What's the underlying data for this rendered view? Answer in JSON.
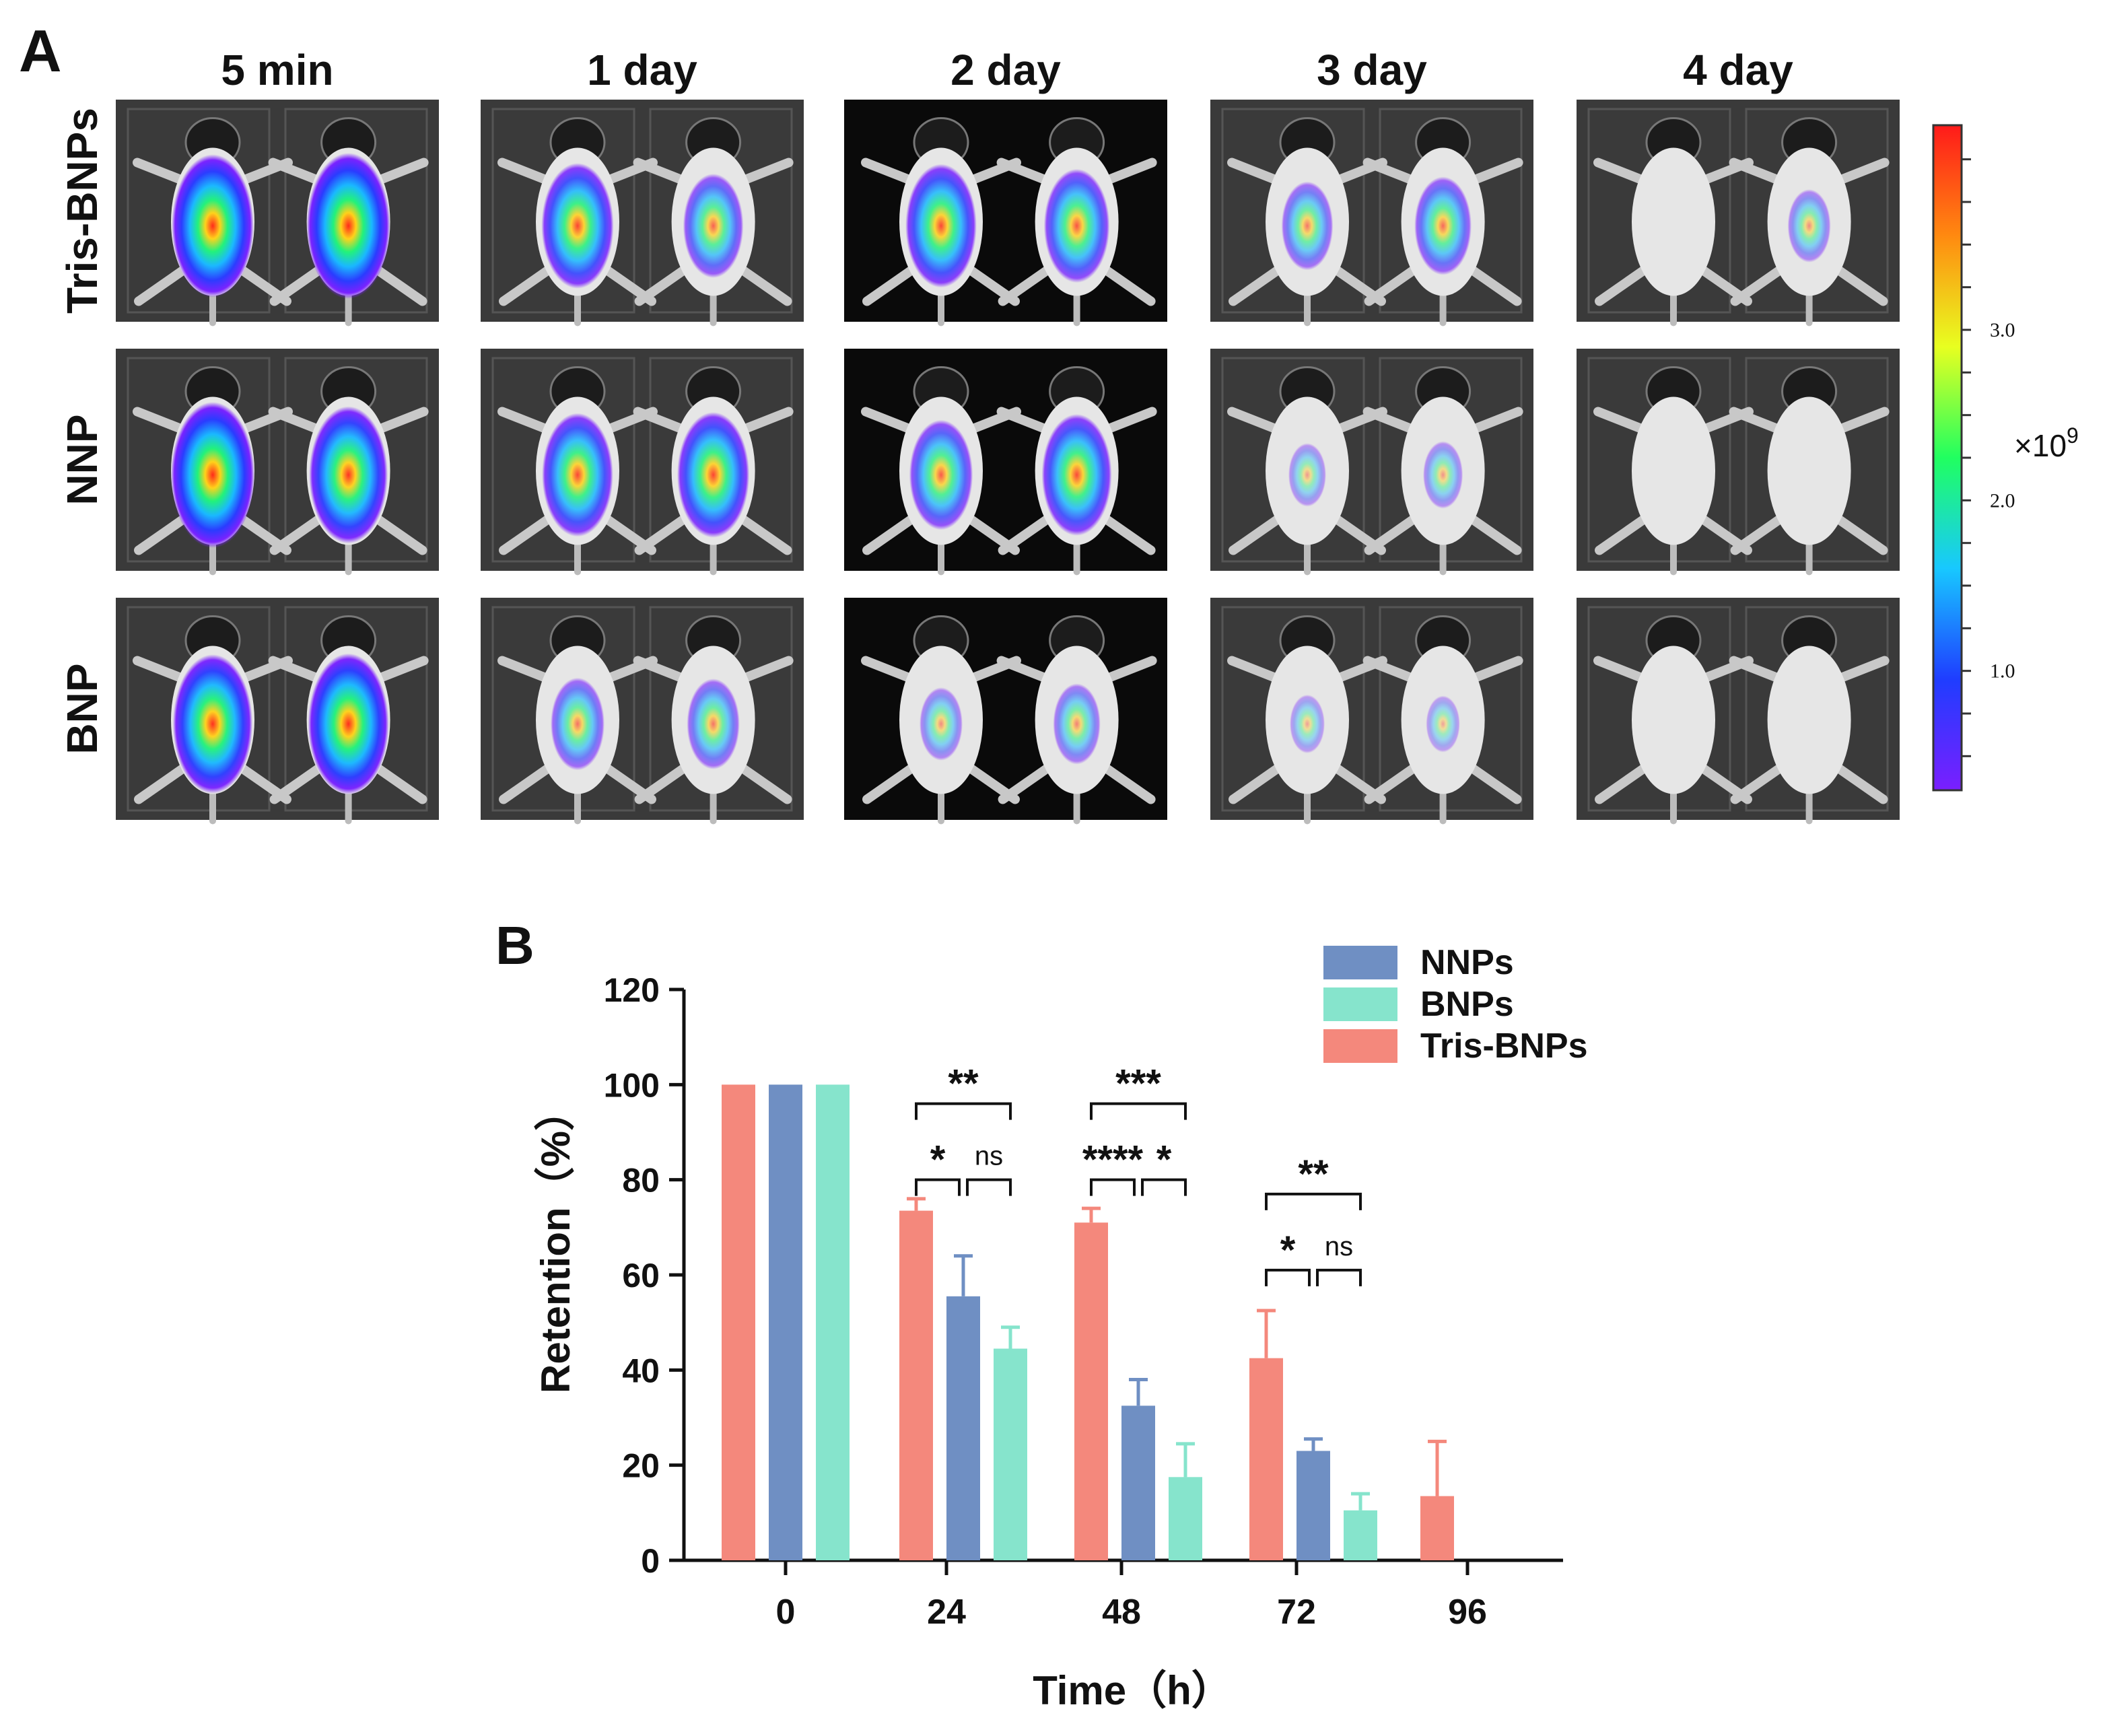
{
  "panel_a": {
    "label": "A",
    "columns": [
      "5 min",
      "1 day",
      "2 day",
      "3 day",
      "4 day"
    ],
    "rows": [
      "Tris-BNPs",
      "NNP",
      "BNP"
    ],
    "signal": [
      [
        [
          0.92,
          0.95
        ],
        [
          0.74,
          0.52
        ],
        [
          0.72,
          0.62
        ],
        [
          0.36,
          0.46
        ],
        [
          0.0,
          0.2
        ]
      ],
      [
        [
          0.95,
          0.86
        ],
        [
          0.72,
          0.74
        ],
        [
          0.58,
          0.7
        ],
        [
          0.1,
          0.14
        ],
        [
          0.0,
          0.0
        ]
      ],
      [
        [
          0.88,
          0.9
        ],
        [
          0.4,
          0.38
        ],
        [
          0.2,
          0.28
        ],
        [
          0.05,
          0.03
        ],
        [
          0.0,
          0.0
        ]
      ]
    ],
    "dark_background_columns": [
      2
    ],
    "colorbar": {
      "ticks": [
        "1.0",
        "2.0",
        "3.0"
      ],
      "tick_values": [
        1.0,
        2.0,
        3.0
      ],
      "range": [
        0.3,
        4.2
      ],
      "unit": "×10",
      "unit_exponent": "9",
      "colors": [
        "#7a1fff",
        "#1f3dff",
        "#18c8ff",
        "#20ff60",
        "#e8ff20",
        "#ff8a10",
        "#ff1a1a"
      ]
    }
  },
  "panel_b": {
    "label": "B",
    "annotations": [
      {
        "group": 1,
        "from": 0,
        "to": 2,
        "text": "**",
        "y": 96,
        "level": "top"
      },
      {
        "group": 1,
        "from": 0,
        "to": 1,
        "text": "*",
        "y": 80,
        "level": "low"
      },
      {
        "group": 1,
        "from": 1,
        "to": 2,
        "text": "ns",
        "y": 80,
        "level": "low"
      },
      {
        "group": 2,
        "from": 0,
        "to": 2,
        "text": "***",
        "y": 96,
        "level": "top"
      },
      {
        "group": 2,
        "from": 0,
        "to": 1,
        "text": "****",
        "y": 80,
        "level": "low"
      },
      {
        "group": 2,
        "from": 1,
        "to": 2,
        "text": "*",
        "y": 80,
        "level": "low"
      },
      {
        "group": 3,
        "from": 0,
        "to": 2,
        "text": "**",
        "y": 77,
        "level": "top"
      },
      {
        "group": 3,
        "from": 0,
        "to": 1,
        "text": "*",
        "y": 61,
        "level": "low"
      },
      {
        "group": 3,
        "from": 1,
        "to": 2,
        "text": "ns",
        "y": 61,
        "level": "low"
      }
    ]
  },
  "chart_data": {
    "type": "bar",
    "categories": [
      "0",
      "24",
      "48",
      "72",
      "96"
    ],
    "xlabel": "Time（h）",
    "ylabel": "Retention（%）",
    "ylim": [
      0,
      120
    ],
    "yticks": [
      0,
      20,
      40,
      60,
      80,
      100,
      120
    ],
    "legend_position": "top-right",
    "series": [
      {
        "name": "Tris-BNPs",
        "color": "#f4887c",
        "values": [
          100,
          73.5,
          71,
          42.5,
          13.5
        ],
        "errors": [
          0,
          2.5,
          3,
          10,
          11.5
        ]
      },
      {
        "name": "NNPs",
        "color": "#6f8fc3",
        "values": [
          100,
          55.5,
          32.5,
          23,
          null
        ],
        "errors": [
          0,
          8.5,
          5.5,
          2.5,
          null
        ]
      },
      {
        "name": "BNPs",
        "color": "#86e4cc",
        "values": [
          100,
          44.5,
          17.5,
          10.5,
          null
        ],
        "errors": [
          0,
          4.5,
          7,
          3.5,
          null
        ]
      }
    ],
    "legend_order": [
      "NNPs",
      "BNPs",
      "Tris-BNPs"
    ]
  }
}
